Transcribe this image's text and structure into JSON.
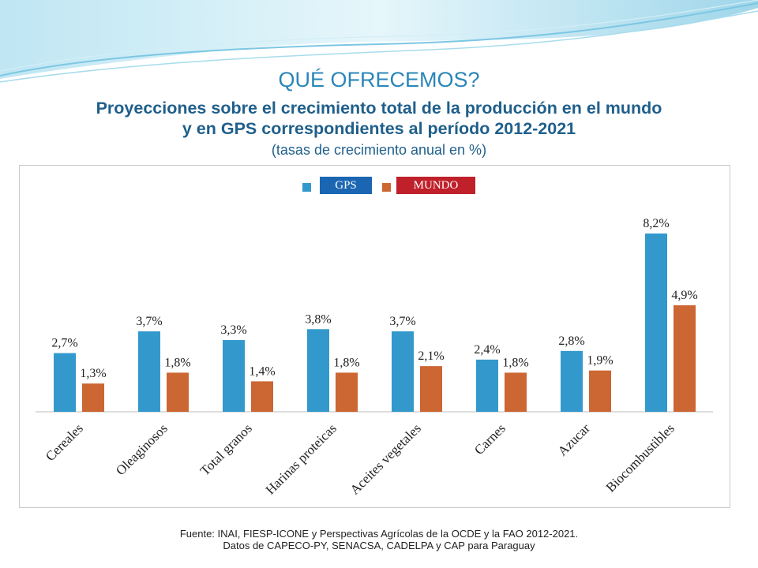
{
  "slide": {
    "title": "QUÉ OFRECEMOS?",
    "subtitle_line1": "Proyecciones sobre el crecimiento total de la producción en el mundo",
    "subtitle_line2": "y en GPS correspondientes al período 2012-2021",
    "units": "(tasas de crecimiento anual en %)",
    "footnote_line1": "Fuente: INAI, FIESP-ICONE y Perspectivas Agrícolas de la OCDE y la FAO 2012-2021.",
    "footnote_line2": "Datos de CAPECO-PY, SENACSA, CADELPA y CAP para Paraguay"
  },
  "legend": {
    "gps_label": "GPS",
    "mundo_label": "MUNDO"
  },
  "colors": {
    "gps": "#3399cc",
    "mundo": "#cc6633",
    "gps_badge": "#1a66b3",
    "mundo_badge": "#c0202a",
    "title": "#2a86b8",
    "subtitle": "#1f5f8b"
  },
  "chart_data": {
    "type": "bar",
    "categories": [
      "Cereales",
      "Oleaginosos",
      "Total granos",
      "Harinas proteicas",
      "Aceites vegetales",
      "Carnes",
      "Azucar",
      "Biocombustibles"
    ],
    "series": [
      {
        "name": "GPS",
        "values": [
          2.7,
          3.7,
          3.3,
          3.8,
          3.7,
          2.4,
          2.8,
          8.2
        ],
        "labels": [
          "2,7%",
          "3,7%",
          "3,3%",
          "3,8%",
          "3,7%",
          "2,4%",
          "2,8%",
          "8,2%"
        ]
      },
      {
        "name": "MUNDO",
        "values": [
          1.3,
          1.8,
          1.4,
          1.8,
          2.1,
          1.8,
          1.9,
          4.9
        ],
        "labels": [
          "1,3%",
          "1,8%",
          "1,4%",
          "1,8%",
          "2,1%",
          "1,8%",
          "1,9%",
          "4,9%"
        ]
      }
    ],
    "ylim": [
      0,
      8.2
    ],
    "grid": false,
    "legend_position": "top-center"
  }
}
